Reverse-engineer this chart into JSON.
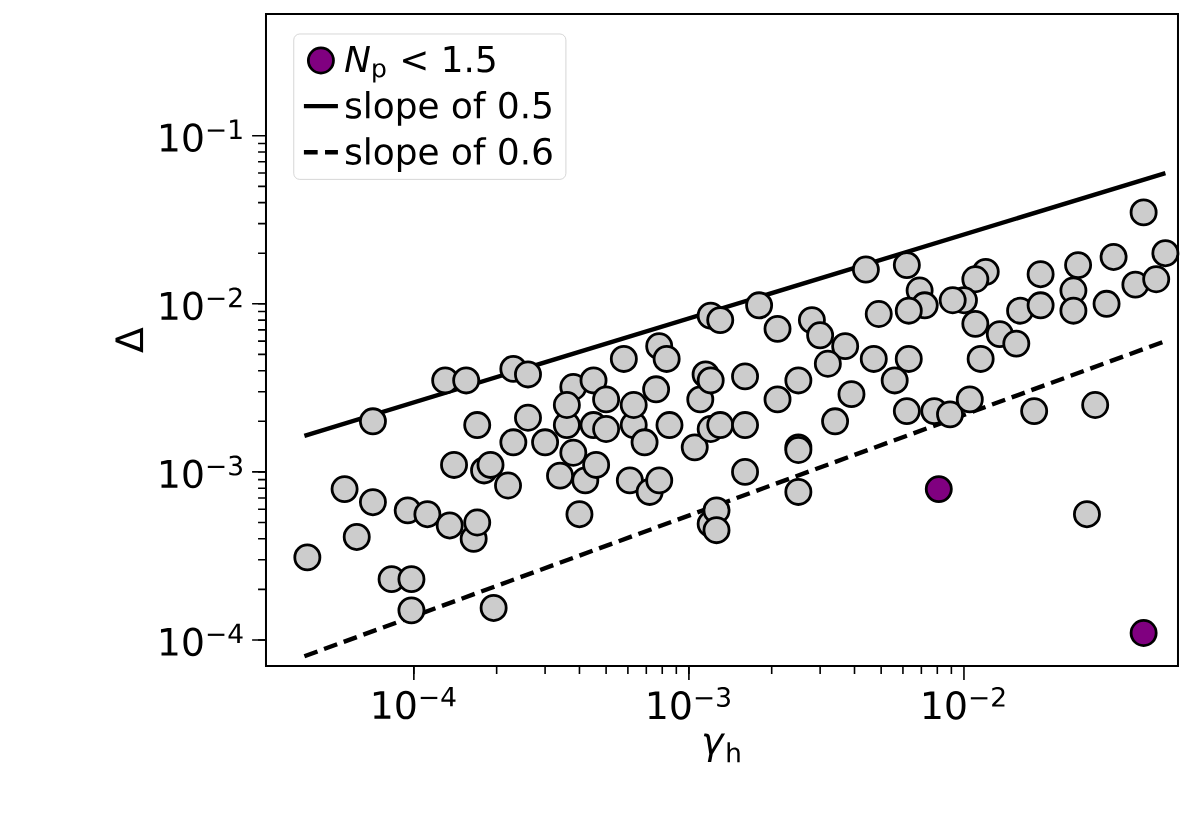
{
  "chart_data": {
    "type": "scatter",
    "xlabel": "*γ*$_{h}$",
    "ylabel": "Δ",
    "log": "xy",
    "xlim": [
      2.9e-05,
      0.06
    ],
    "ylim": [
      7e-05,
      0.53
    ],
    "xticks": [
      {
        "value": 0.0001,
        "label": "10$^{−4}$"
      },
      {
        "value": 0.001,
        "label": "10$^{−3}$"
      },
      {
        "value": 0.01,
        "label": "10$^{−2}$"
      }
    ],
    "yticks": [
      {
        "value": 0.0001,
        "label": "10$^{−4}$"
      },
      {
        "value": 0.001,
        "label": "10$^{−3}$"
      },
      {
        "value": 0.01,
        "label": "10$^{−2}$"
      },
      {
        "value": 0.1,
        "label": "10$^{−1}$"
      }
    ],
    "marker": "circle",
    "legend": "top left",
    "series": [
      {
        "color": "#cccccc",
        "x": [
          4.1e-05,
          5.6e-05,
          6.2e-05,
          7.1e-05,
          8.3e-05,
          9.8e-05,
          9.8e-05,
          9.5e-05,
          0.000112,
          0.000135,
          0.000165,
          0.00017,
          0.000195,
          0.00014,
          0.00018,
          0.00019,
          0.00022,
          0.00017,
          7.1e-05,
          0.00023,
          0.00026,
          0.0003,
          0.00034,
          0.00036,
          0.00038,
          0.00042,
          0.0004,
          0.00045,
          0.00046,
          0.0005,
          0.00063,
          0.00061,
          0.00069,
          0.00072,
          0.00078,
          0.00085,
          0.00105,
          0.0012,
          0.0012,
          0.00013,
          0.000155,
          0.00023,
          0.00026,
          0.00038,
          0.00045,
          0.00058,
          0.00078,
          0.00083,
          0.00076,
          0.00036,
          0.0005,
          0.00063,
          0.0011,
          0.00115,
          0.0012,
          0.045,
          0.054,
          0.035,
          0.026,
          0.019,
          0.012,
          0.011,
          0.042,
          0.05,
          0.033,
          0.025,
          0.025,
          0.016,
          0.019,
          0.01,
          0.011,
          0.0135,
          0.0155,
          0.0115,
          0.0044,
          0.0062,
          0.0069,
          0.0072,
          0.0063,
          0.0091,
          0.0049,
          0.0028,
          0.003,
          0.0021,
          0.0018,
          0.0013,
          0.0037,
          0.0047,
          0.0063,
          0.0056,
          0.0032,
          0.0039,
          0.0025,
          0.0021,
          0.0016,
          0.0012,
          0.0013,
          0.0016,
          0.0025,
          0.0034,
          0.0062,
          0.0078,
          0.0089,
          0.0105,
          0.018,
          0.03,
          0.028,
          0.0025,
          0.0025,
          0.00126,
          0.00126,
          0.0016
        ],
        "values": [
          0.00031,
          0.00079,
          0.00041,
          0.00066,
          0.00023,
          0.00023,
          0.00015,
          0.00059,
          0.00056,
          0.00048,
          0.0004,
          0.0005,
          0.000155,
          0.0011,
          0.00102,
          0.0011,
          0.00083,
          0.0019,
          0.002,
          0.0015,
          0.0021,
          0.0015,
          0.00095,
          0.0019,
          0.0013,
          0.00089,
          0.00056,
          0.0019,
          0.0011,
          0.0018,
          0.0019,
          0.00089,
          0.0015,
          0.00076,
          0.00089,
          0.0019,
          0.0014,
          0.00049,
          0.0018,
          0.0035,
          0.0035,
          0.0041,
          0.0038,
          0.0032,
          0.0035,
          0.0047,
          0.0056,
          0.0047,
          0.0031,
          0.0025,
          0.0027,
          0.0025,
          0.0027,
          0.0038,
          0.0085,
          0.035,
          0.02,
          0.019,
          0.017,
          0.015,
          0.0155,
          0.014,
          0.013,
          0.014,
          0.01,
          0.012,
          0.0091,
          0.0091,
          0.0098,
          0.0105,
          0.0076,
          0.0066,
          0.0058,
          0.0047,
          0.016,
          0.017,
          0.012,
          0.0098,
          0.0091,
          0.0105,
          0.0087,
          0.008,
          0.0065,
          0.0071,
          0.0098,
          0.008,
          0.0056,
          0.0047,
          0.0047,
          0.0035,
          0.0044,
          0.0029,
          0.0035,
          0.0027,
          0.0037,
          0.0035,
          0.0019,
          0.0019,
          0.0014,
          0.002,
          0.0023,
          0.0023,
          0.0022,
          0.0027,
          0.0023,
          0.0025,
          0.00056,
          0.00135,
          0.00076,
          0.00059,
          0.00045,
          0.001
        ]
      },
      {
        "name": "*N*$_{p}$ < 1.5",
        "color": "#800080",
        "x": [
          0.0081,
          0.045
        ],
        "values": [
          0.00079,
          0.00011
        ]
      },
      {
        "type": "line",
        "name": "slope of 0.5",
        "color": "#000000",
        "line_style": "solid",
        "marker": "none",
        "x": [
          4e-05,
          0.054
        ],
        "values": [
          0.00164,
          0.06
        ]
      },
      {
        "type": "line",
        "name": "slope of 0.6",
        "color": "#000000",
        "line_style": "dashed",
        "marker": "none",
        "x": [
          4e-05,
          0.054
        ],
        "values": [
          8e-05,
          0.006
        ]
      }
    ]
  }
}
